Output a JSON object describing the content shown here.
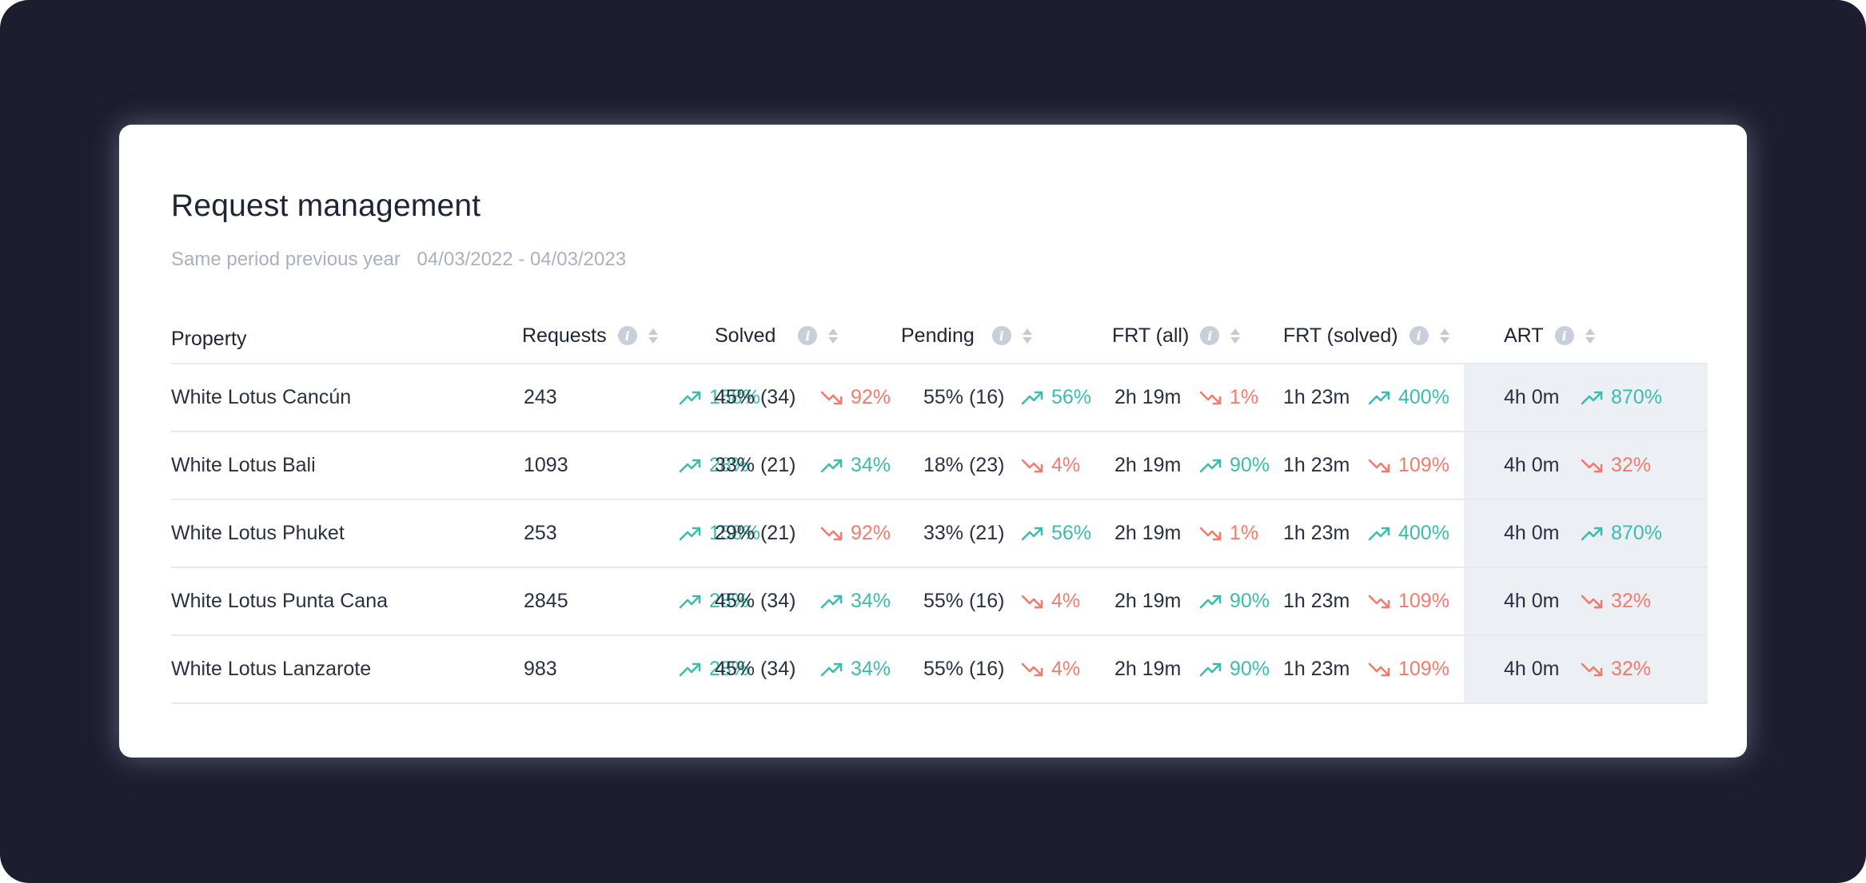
{
  "title": "Request management",
  "period": {
    "label": "Same period previous year",
    "range": "04/03/2022 - 04/03/2023"
  },
  "columns": {
    "property": "Property",
    "requests": "Requests",
    "solved": "Solved",
    "pending": "Pending",
    "frt_all": "FRT (all)",
    "frt_solved": "FRT (solved)",
    "art": "ART"
  },
  "colors": {
    "background": "#1c1d2f",
    "trend_up": "#3dbbae",
    "trend_down": "#f17b6d",
    "highlight_column": "#eceff4"
  },
  "icons": {
    "info": "info-icon",
    "sort": "sort-icon",
    "trend_up": "trend-up-icon",
    "trend_down": "trend-down-icon"
  },
  "rows": [
    {
      "property": "White Lotus Cancún",
      "requests": {
        "value": "243",
        "change": "158%",
        "dir": "up"
      },
      "solved": {
        "value": "45% (34)",
        "change": "92%",
        "dir": "down"
      },
      "pending": {
        "value": "55% (16)",
        "change": "56%",
        "dir": "up"
      },
      "frt_all": {
        "value": "2h 19m",
        "change": "1%",
        "dir": "down"
      },
      "frt_solved": {
        "value": "1h 23m",
        "change": "400%",
        "dir": "up"
      },
      "art": {
        "value": "4h 0m",
        "change": "870%",
        "dir": "up"
      }
    },
    {
      "property": "White Lotus Bali",
      "requests": {
        "value": "1093",
        "change": "28%",
        "dir": "up"
      },
      "solved": {
        "value": "33% (21)",
        "change": "34%",
        "dir": "up"
      },
      "pending": {
        "value": "18% (23)",
        "change": "4%",
        "dir": "down"
      },
      "frt_all": {
        "value": "2h 19m",
        "change": "90%",
        "dir": "up"
      },
      "frt_solved": {
        "value": "1h 23m",
        "change": "109%",
        "dir": "down"
      },
      "art": {
        "value": "4h 0m",
        "change": "32%",
        "dir": "down"
      }
    },
    {
      "property": "White Lotus Phuket",
      "requests": {
        "value": "253",
        "change": "158%",
        "dir": "up"
      },
      "solved": {
        "value": "29% (21)",
        "change": "92%",
        "dir": "down"
      },
      "pending": {
        "value": "33% (21)",
        "change": "56%",
        "dir": "up"
      },
      "frt_all": {
        "value": "2h 19m",
        "change": "1%",
        "dir": "down"
      },
      "frt_solved": {
        "value": "1h 23m",
        "change": "400%",
        "dir": "up"
      },
      "art": {
        "value": "4h 0m",
        "change": "870%",
        "dir": "up"
      }
    },
    {
      "property": "White Lotus Punta Cana",
      "requests": {
        "value": "2845",
        "change": "28%",
        "dir": "up"
      },
      "solved": {
        "value": "45% (34)",
        "change": "34%",
        "dir": "up"
      },
      "pending": {
        "value": "55% (16)",
        "change": "4%",
        "dir": "down"
      },
      "frt_all": {
        "value": "2h 19m",
        "change": "90%",
        "dir": "up"
      },
      "frt_solved": {
        "value": "1h 23m",
        "change": "109%",
        "dir": "down"
      },
      "art": {
        "value": "4h 0m",
        "change": "32%",
        "dir": "down"
      }
    },
    {
      "property": "White Lotus Lanzarote",
      "requests": {
        "value": "983",
        "change": "28%",
        "dir": "up"
      },
      "solved": {
        "value": "45% (34)",
        "change": "34%",
        "dir": "up"
      },
      "pending": {
        "value": "55% (16)",
        "change": "4%",
        "dir": "down"
      },
      "frt_all": {
        "value": "2h 19m",
        "change": "90%",
        "dir": "up"
      },
      "frt_solved": {
        "value": "1h 23m",
        "change": "109%",
        "dir": "down"
      },
      "art": {
        "value": "4h 0m",
        "change": "32%",
        "dir": "down"
      }
    }
  ]
}
